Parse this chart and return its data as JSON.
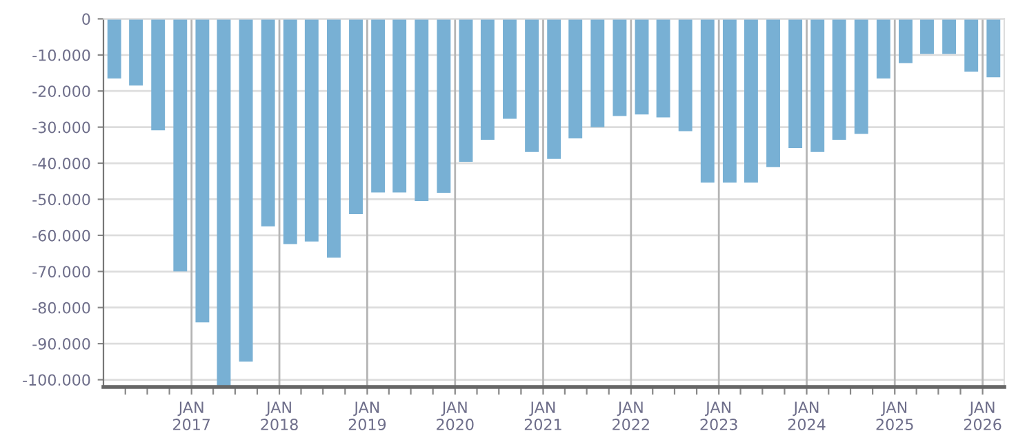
{
  "chart_data": {
    "type": "bar",
    "color": "#78b0d4",
    "grid": true,
    "x": [
      "2016-02-15",
      "2016-05-15",
      "2016-08-15",
      "2016-11-15",
      "2017-02-15",
      "2017-05-15",
      "2017-08-15",
      "2017-11-15",
      "2018-02-15",
      "2018-05-15",
      "2018-08-15",
      "2018-11-15",
      "2019-02-15",
      "2019-05-15",
      "2019-08-15",
      "2019-11-15",
      "2020-02-15",
      "2020-05-15",
      "2020-08-15",
      "2020-11-15",
      "2021-02-15",
      "2021-05-15",
      "2021-08-15",
      "2021-11-15",
      "2022-02-15",
      "2022-05-15",
      "2022-08-15",
      "2022-11-15",
      "2023-02-15",
      "2023-05-15",
      "2023-08-15",
      "2023-11-15",
      "2024-02-15",
      "2024-05-15",
      "2024-08-15",
      "2024-11-15",
      "2025-02-15",
      "2025-05-15",
      "2025-08-15",
      "2025-11-15",
      "2026-02-15"
    ],
    "values": [
      -16500,
      -18500,
      -30900,
      -70000,
      -84100,
      -101800,
      -95000,
      -57500,
      -62400,
      -61700,
      -66200,
      -54100,
      -48100,
      -48100,
      -50500,
      -48200,
      -39600,
      -33500,
      -27700,
      -36900,
      -38800,
      -33100,
      -30000,
      -26900,
      -26500,
      -27300,
      -31100,
      -45400,
      -45400,
      -45400,
      -41100,
      -35800,
      -36900,
      -33500,
      -31900,
      -16500,
      -12300,
      -9700,
      -9700,
      -14600,
      -16200
    ],
    "xlim": [
      "2016-01-01",
      "2026-04-01"
    ],
    "ylim": [
      -102000,
      0
    ],
    "xticks": [
      {
        "value": "2016-04-01",
        "label": null
      },
      {
        "value": "2016-07-01",
        "label": null
      },
      {
        "value": "2016-10-01",
        "label": null
      },
      {
        "value": "2017-01-01",
        "label": "JAN\n2017"
      },
      {
        "value": "2017-04-01",
        "label": null
      },
      {
        "value": "2017-07-01",
        "label": null
      },
      {
        "value": "2017-10-01",
        "label": null
      },
      {
        "value": "2018-01-01",
        "label": "JAN\n2018"
      },
      {
        "value": "2018-04-01",
        "label": null
      },
      {
        "value": "2018-07-01",
        "label": null
      },
      {
        "value": "2018-10-01",
        "label": null
      },
      {
        "value": "2019-01-01",
        "label": "JAN\n2019"
      },
      {
        "value": "2019-04-01",
        "label": null
      },
      {
        "value": "2019-07-01",
        "label": null
      },
      {
        "value": "2019-10-01",
        "label": null
      },
      {
        "value": "2020-01-01",
        "label": "JAN\n2020"
      },
      {
        "value": "2020-04-01",
        "label": null
      },
      {
        "value": "2020-07-01",
        "label": null
      },
      {
        "value": "2020-10-01",
        "label": null
      },
      {
        "value": "2021-01-01",
        "label": "JAN\n2021"
      },
      {
        "value": "2021-04-01",
        "label": null
      },
      {
        "value": "2021-07-01",
        "label": null
      },
      {
        "value": "2021-10-01",
        "label": null
      },
      {
        "value": "2022-01-01",
        "label": "JAN\n2022"
      },
      {
        "value": "2022-04-01",
        "label": null
      },
      {
        "value": "2022-07-01",
        "label": null
      },
      {
        "value": "2022-10-01",
        "label": null
      },
      {
        "value": "2023-01-01",
        "label": "JAN\n2023"
      },
      {
        "value": "2023-04-01",
        "label": null
      },
      {
        "value": "2023-07-01",
        "label": null
      },
      {
        "value": "2023-10-01",
        "label": null
      },
      {
        "value": "2024-01-01",
        "label": "JAN\n2024"
      },
      {
        "value": "2024-04-01",
        "label": null
      },
      {
        "value": "2024-07-01",
        "label": null
      },
      {
        "value": "2024-10-01",
        "label": null
      },
      {
        "value": "2025-01-01",
        "label": "JAN\n2025"
      },
      {
        "value": "2025-04-01",
        "label": null
      },
      {
        "value": "2025-07-01",
        "label": null
      },
      {
        "value": "2025-10-01",
        "label": null
      },
      {
        "value": "2026-01-01",
        "label": "JAN\n2026"
      }
    ],
    "yticks": [
      {
        "value": 0,
        "label": "0"
      },
      {
        "value": -10000,
        "label": "-10.000"
      },
      {
        "value": -20000,
        "label": "-20.000"
      },
      {
        "value": -30000,
        "label": "-30.000"
      },
      {
        "value": -40000,
        "label": "-40.000"
      },
      {
        "value": -50000,
        "label": "-50.000"
      },
      {
        "value": -60000,
        "label": "-60.000"
      },
      {
        "value": -70000,
        "label": "-70.000"
      },
      {
        "value": -80000,
        "label": "-80.000"
      },
      {
        "value": -90000,
        "label": "-90.000"
      },
      {
        "value": -100000,
        "label": "-100.000"
      }
    ]
  }
}
